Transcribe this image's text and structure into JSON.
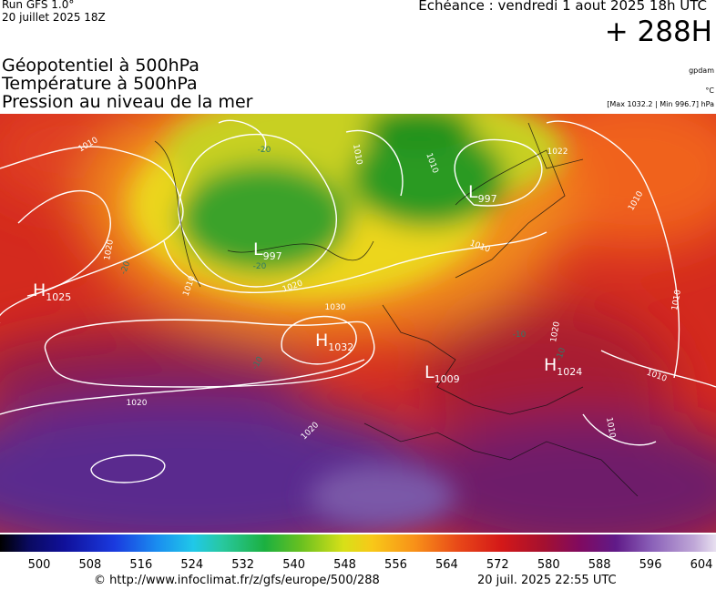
{
  "header": {
    "run": "Run GFS 1.0°",
    "run_date": "20 juillet 2025 18Z",
    "valid": "Echéance : vendredi 1 aout 2025 18h UTC",
    "lead": "+ 288H",
    "fields": [
      "Géopotentiel à 500hPa",
      "Température à 500hPa",
      "Pression au niveau de la mer"
    ],
    "units": [
      "gpdam",
      "°C",
      "[Max 1032.2 | Min 996.7] hPa"
    ]
  },
  "centers": [
    {
      "type": "H",
      "value": 1025
    },
    {
      "type": "L",
      "value": 997
    },
    {
      "type": "H",
      "value": 1032
    },
    {
      "type": "L",
      "value": 997
    },
    {
      "type": "L",
      "value": 1009
    },
    {
      "type": "H",
      "value": 1024
    }
  ],
  "contour_labels": [
    "1010",
    "1020",
    "1020",
    "1030",
    "1020",
    "1020",
    "1010",
    "1010",
    "1010",
    "1010",
    "1022",
    "1010",
    "1010",
    "1020",
    "1010",
    "1010",
    "-20",
    "-20",
    "-20",
    "-10",
    "-10",
    "-10"
  ],
  "colorbar": {
    "ticks": [
      500,
      508,
      516,
      524,
      532,
      540,
      548,
      556,
      564,
      572,
      580,
      588,
      596,
      604
    ]
  },
  "footer": {
    "source": "© http://www.infoclimat.fr/z/gfs/europe/500/288",
    "generated": "20 juil. 2025 22:55 UTC"
  }
}
